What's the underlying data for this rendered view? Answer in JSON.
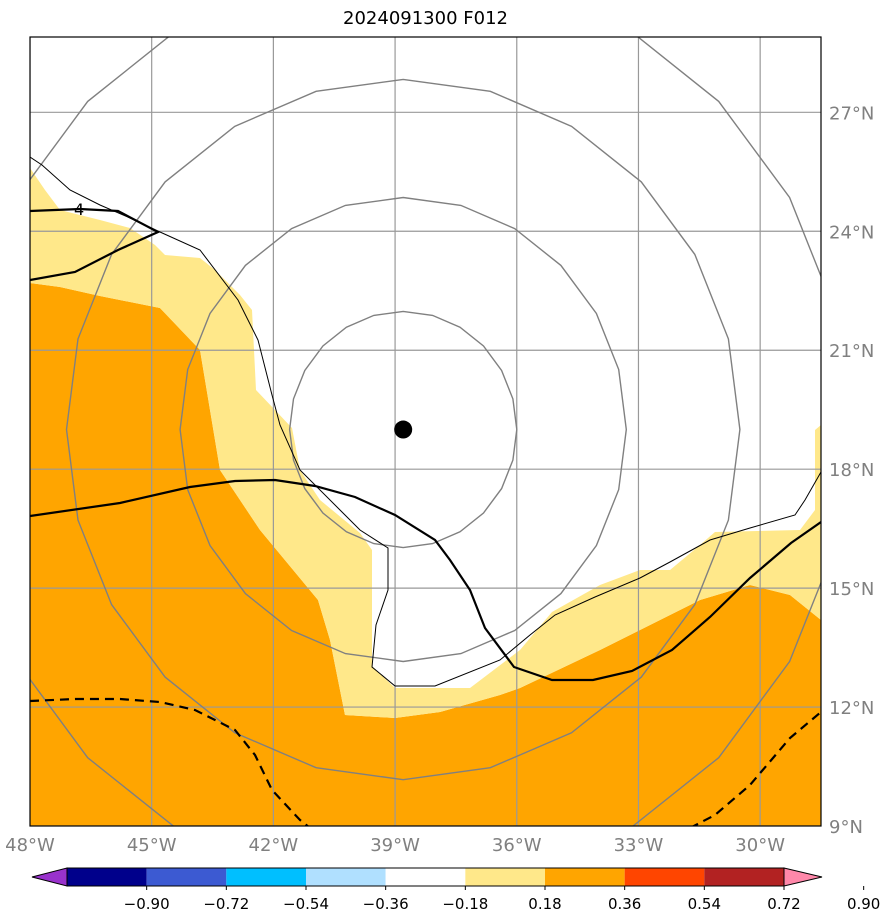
{
  "title": "2024091300 F012",
  "map": {
    "lon_range": [
      -48,
      -28.5
    ],
    "lat_range": [
      9,
      28.9
    ],
    "lat_ticks": [
      {
        "value": 27,
        "label": "27°N"
      },
      {
        "value": 24,
        "label": "24°N"
      },
      {
        "value": 21,
        "label": "21°N"
      },
      {
        "value": 18,
        "label": "18°N"
      },
      {
        "value": 15,
        "label": "15°N"
      },
      {
        "value": 12,
        "label": "12°N"
      },
      {
        "value": 9,
        "label": "9°N"
      }
    ],
    "lon_ticks": [
      {
        "value": -48,
        "label": "48°W"
      },
      {
        "value": -45,
        "label": "45°W"
      },
      {
        "value": -42,
        "label": "42°W"
      },
      {
        "value": -39,
        "label": "39°W"
      },
      {
        "value": -36,
        "label": "36°W"
      },
      {
        "value": -33,
        "label": "33°W"
      },
      {
        "value": -30,
        "label": "30°W"
      }
    ],
    "storm_center": {
      "lon": -38.8,
      "lat": 19.0
    },
    "range_ring_radii_deg": [
      2.8,
      5.5,
      8.3,
      11.0
    ],
    "contour_label": "4",
    "grid": true
  },
  "colorbar": {
    "colors": [
      "#9932cc",
      "#00008b",
      "#3c5ad2",
      "#00bfff",
      "#b0e0ff",
      "#ffffff",
      "#ffe88a",
      "#ffa500",
      "#ff4500",
      "#b22222",
      "#ff88aa"
    ],
    "labels": [
      "−0.90",
      "−0.72",
      "−0.54",
      "−0.36",
      "−0.18",
      "0.18",
      "0.36",
      "0.54",
      "0.72",
      "0.90"
    ]
  }
}
